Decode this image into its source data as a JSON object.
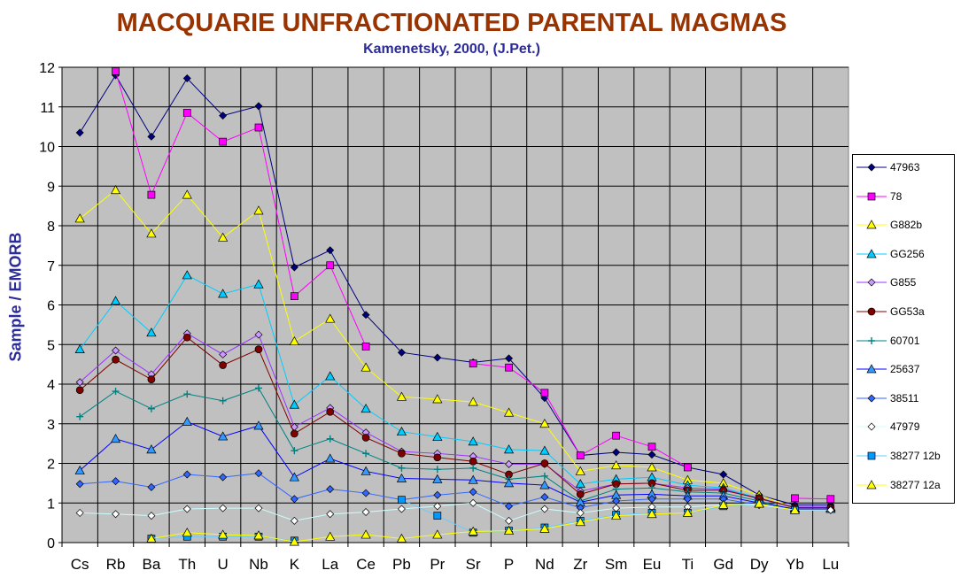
{
  "chart_data": {
    "type": "line",
    "title": "MACQUARIE UNFRACTIONATED PARENTAL MAGMAS",
    "subtitle": "Kamenetsky, 2000, (J.Pet.)",
    "ylabel": "Sample / EMORB",
    "xlabel": "",
    "ylim": [
      0,
      12
    ],
    "yticks": [
      "0",
      "1",
      "2",
      "3",
      "4",
      "5",
      "6",
      "7",
      "8",
      "9",
      "10",
      "11",
      "12"
    ],
    "categories": [
      "Cs",
      "Rb",
      "Ba",
      "Th",
      "U",
      "Nb",
      "K",
      "La",
      "Ce",
      "Pb",
      "Pr",
      "Sr",
      "P",
      "Nd",
      "Zr",
      "Sm",
      "Eu",
      "Ti",
      "Gd",
      "Dy",
      "Yb",
      "Lu"
    ],
    "grid": true,
    "legend_position": "right",
    "series": [
      {
        "name": "47963",
        "color": "#000080",
        "marker": "diamond",
        "fill": "#000080",
        "values": [
          10.35,
          11.8,
          10.25,
          11.72,
          10.78,
          11.02,
          6.95,
          7.38,
          5.75,
          4.8,
          4.67,
          4.55,
          4.65,
          3.65,
          2.2,
          2.28,
          2.22,
          1.9,
          1.72,
          1.2,
          0.95,
          0.95
        ]
      },
      {
        "name": "78",
        "color": "#ff00ff",
        "marker": "square",
        "fill": "#ff00ff",
        "values": [
          null,
          11.9,
          8.78,
          10.85,
          10.12,
          10.48,
          6.22,
          7.0,
          4.95,
          null,
          null,
          4.52,
          4.42,
          3.78,
          2.2,
          2.7,
          2.42,
          1.9,
          null,
          null,
          1.12,
          1.1
        ]
      },
      {
        "name": "G882b",
        "color": "#ffff00",
        "marker": "triangle",
        "fill": "#ffff00",
        "values": [
          8.18,
          8.9,
          7.8,
          8.78,
          7.7,
          8.38,
          5.08,
          5.65,
          4.42,
          3.68,
          3.62,
          3.55,
          3.28,
          3.0,
          1.8,
          1.95,
          1.9,
          1.58,
          1.5,
          1.2,
          0.88,
          0.88
        ]
      },
      {
        "name": "GG256",
        "color": "#00ccff",
        "marker": "triangle",
        "fill": "#00ccff",
        "values": [
          4.88,
          6.1,
          5.3,
          6.75,
          6.28,
          6.52,
          3.48,
          4.2,
          3.38,
          2.8,
          2.67,
          2.55,
          2.35,
          2.32,
          1.48,
          1.6,
          1.65,
          1.45,
          1.38,
          1.12,
          0.88,
          0.9
        ]
      },
      {
        "name": "G855",
        "color": "#9933ff",
        "marker": "diamond",
        "fill": "#cc99ff",
        "values": [
          4.05,
          4.85,
          4.25,
          5.28,
          4.75,
          5.25,
          2.92,
          3.4,
          2.78,
          2.3,
          2.25,
          2.18,
          1.98,
          1.98,
          1.3,
          1.48,
          1.5,
          1.38,
          1.35,
          1.1,
          0.9,
          0.9
        ]
      },
      {
        "name": "GG53a",
        "color": "#800000",
        "marker": "circle",
        "fill": "#800000",
        "values": [
          3.85,
          4.62,
          4.12,
          5.18,
          4.48,
          4.88,
          2.75,
          3.3,
          2.65,
          2.25,
          2.15,
          2.05,
          1.72,
          2.0,
          1.22,
          1.48,
          1.5,
          1.32,
          1.32,
          1.12,
          0.88,
          0.88
        ]
      },
      {
        "name": "60701",
        "color": "#008080",
        "marker": "plus",
        "fill": "#008080",
        "values": [
          3.18,
          3.82,
          3.38,
          3.75,
          3.58,
          3.9,
          2.32,
          2.62,
          2.25,
          1.88,
          1.85,
          1.88,
          1.6,
          1.68,
          1.05,
          1.35,
          1.38,
          1.28,
          1.25,
          1.05,
          0.82,
          0.82
        ]
      },
      {
        "name": "25637",
        "color": "#0000ff",
        "marker": "triangle",
        "fill": "#3399ff",
        "values": [
          1.82,
          2.62,
          2.35,
          3.05,
          2.68,
          2.95,
          1.65,
          2.12,
          1.8,
          1.62,
          1.6,
          1.58,
          1.5,
          1.45,
          1.02,
          1.2,
          1.22,
          1.18,
          1.18,
          1.0,
          0.85,
          0.85
        ]
      },
      {
        "name": "38511",
        "color": "#3366ff",
        "marker": "diamond",
        "fill": "#3366ff",
        "values": [
          1.48,
          1.55,
          1.4,
          1.72,
          1.65,
          1.75,
          1.1,
          1.35,
          1.25,
          1.08,
          1.2,
          1.28,
          0.92,
          1.15,
          0.88,
          1.05,
          1.1,
          1.1,
          1.1,
          0.95,
          0.82,
          0.82
        ]
      },
      {
        "name": "47979",
        "color": "#ccffff",
        "marker": "diamond",
        "fill": "#ffffff",
        "values": [
          0.75,
          0.72,
          0.68,
          0.85,
          0.87,
          0.87,
          0.55,
          0.72,
          0.77,
          0.85,
          0.92,
          1.0,
          0.55,
          0.85,
          0.75,
          0.87,
          0.9,
          0.9,
          0.95,
          0.95,
          0.82,
          0.82
        ]
      },
      {
        "name": "38277 12b",
        "color": "#66ccff",
        "marker": "square",
        "fill": "#0099ff",
        "values": [
          null,
          null,
          0.1,
          0.15,
          0.15,
          0.15,
          0.05,
          null,
          null,
          1.08,
          0.68,
          0.25,
          0.3,
          0.38,
          0.55,
          0.7,
          0.75,
          0.75,
          0.92,
          0.98,
          0.82,
          null
        ]
      },
      {
        "name": "38277 12a",
        "color": "#ffff00",
        "marker": "triangle",
        "fill": "#ffff00",
        "values": [
          null,
          null,
          0.1,
          0.25,
          0.2,
          0.18,
          0.02,
          0.15,
          0.2,
          0.1,
          0.2,
          0.28,
          0.3,
          0.35,
          0.52,
          0.68,
          0.72,
          0.75,
          0.95,
          0.98,
          0.82,
          null
        ]
      }
    ]
  }
}
